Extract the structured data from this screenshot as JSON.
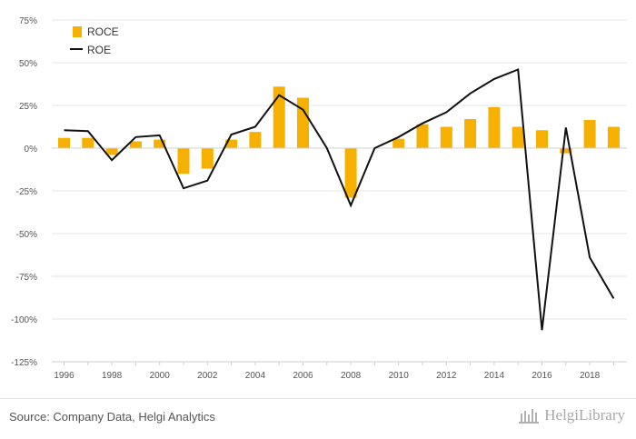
{
  "chart_data": {
    "type": "bar",
    "x": [
      1996,
      1997,
      1998,
      1999,
      2000,
      2001,
      2002,
      2003,
      2004,
      2005,
      2006,
      2007,
      2008,
      2009,
      2010,
      2011,
      2012,
      2013,
      2014,
      2015,
      2016,
      2017,
      2018,
      2019
    ],
    "xticks": [
      "1996",
      "1998",
      "2000",
      "2002",
      "2004",
      "2006",
      "2008",
      "2010",
      "2012",
      "2014",
      "2016",
      "2018"
    ],
    "yticks": [
      "75%",
      "50%",
      "25%",
      "0%",
      "-25%",
      "-50%",
      "-75%",
      "-100%",
      "-125%"
    ],
    "ytick_values": [
      75,
      50,
      25,
      0,
      -25,
      -50,
      -75,
      -100,
      -125
    ],
    "ylim": [
      -125,
      75
    ],
    "grid": true,
    "legend_position": "top-left",
    "series": [
      {
        "name": "ROCE",
        "type": "bar",
        "color": "#f5b000",
        "values": [
          6,
          6,
          -4,
          4,
          5,
          -15,
          -12,
          5,
          9.5,
          36,
          29.5,
          0,
          -29,
          0,
          5.5,
          14,
          12.5,
          17,
          24,
          12.5,
          10.5,
          -3,
          16.5,
          12.5
        ]
      },
      {
        "name": "ROE",
        "type": "line",
        "color": "#111111",
        "values": [
          10.5,
          10,
          -7,
          6.5,
          7.5,
          -23.5,
          -19,
          8,
          12.5,
          31,
          22.5,
          0,
          -33.5,
          0,
          6.5,
          14.5,
          21,
          32,
          40.5,
          46,
          -106.5,
          12,
          -64,
          -88
        ]
      }
    ]
  },
  "footer": {
    "source": "Source: Company Data, Helgi Analytics",
    "brand": "HelgiLibrary"
  }
}
